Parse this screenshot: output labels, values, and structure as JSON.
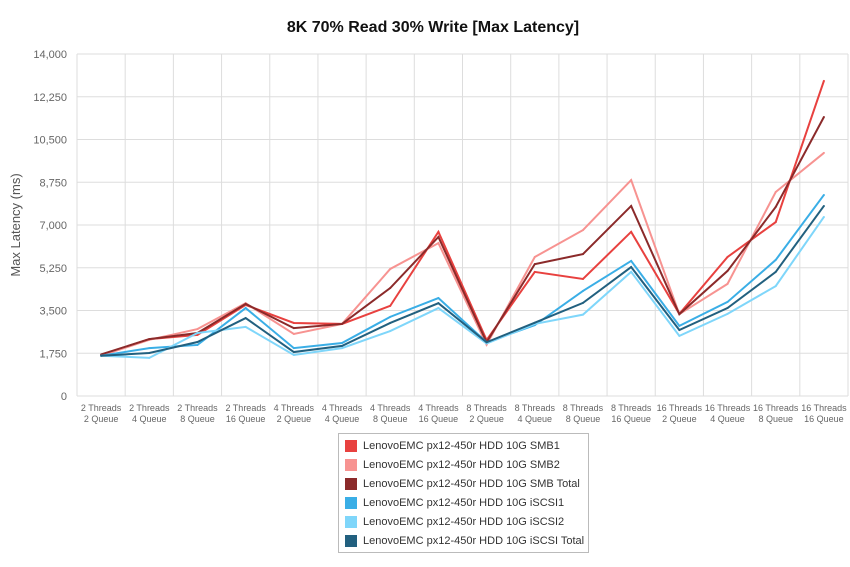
{
  "chart_data": {
    "type": "line",
    "title": "8K 70% Read 30% Write [Max Latency]",
    "ylabel": "Max Latency (ms)",
    "xlabel": "",
    "ylim": [
      0,
      14000
    ],
    "yticks": [
      "0",
      "1,750",
      "3,500",
      "5,250",
      "7,000",
      "8,750",
      "10,500",
      "12,250",
      "14,000"
    ],
    "ytick_values": [
      0,
      1750,
      3500,
      5250,
      7000,
      8750,
      10500,
      12250,
      14000
    ],
    "grid": true,
    "legend_position": "bottom",
    "categories": [
      [
        "2 Threads",
        "2 Queue"
      ],
      [
        "2 Threads",
        "4 Queue"
      ],
      [
        "2 Threads",
        "8 Queue"
      ],
      [
        "2 Threads",
        "16 Queue"
      ],
      [
        "4 Threads",
        "2 Queue"
      ],
      [
        "4 Threads",
        "4 Queue"
      ],
      [
        "4 Threads",
        "8 Queue"
      ],
      [
        "4 Threads",
        "16 Queue"
      ],
      [
        "8 Threads",
        "2 Queue"
      ],
      [
        "8 Threads",
        "4 Queue"
      ],
      [
        "8 Threads",
        "8 Queue"
      ],
      [
        "8 Threads",
        "16 Queue"
      ],
      [
        "16 Threads",
        "2 Queue"
      ],
      [
        "16 Threads",
        "4 Queue"
      ],
      [
        "16 Threads",
        "8 Queue"
      ],
      [
        "16 Threads",
        "16 Queue"
      ]
    ],
    "series": [
      {
        "name": "LenovoEMC px12-450r HDD 10G SMB1",
        "color": "#e8413f",
        "values": [
          1680,
          2330,
          2500,
          3730,
          2990,
          2950,
          3690,
          6720,
          2290,
          5080,
          4790,
          6720,
          3360,
          5690,
          7120,
          12900
        ]
      },
      {
        "name": "LenovoEMC px12-450r HDD 10G SMB2",
        "color": "#f79391",
        "values": [
          1650,
          2300,
          2740,
          3800,
          2540,
          2950,
          5200,
          6260,
          2100,
          5690,
          6790,
          8840,
          3350,
          4590,
          8350,
          9950
        ]
      },
      {
        "name": "LenovoEMC px12-450r HDD 10G SMB Total",
        "color": "#8b2a2a",
        "values": [
          1700,
          2330,
          2580,
          3770,
          2780,
          2950,
          4420,
          6510,
          2200,
          5400,
          5810,
          7780,
          3350,
          5120,
          7740,
          11420
        ]
      },
      {
        "name": "LenovoEMC px12-450r HDD 10G iSCSI1",
        "color": "#3aaee6",
        "values": [
          1650,
          1960,
          2090,
          3600,
          1960,
          2170,
          3240,
          4010,
          2200,
          2900,
          4300,
          5530,
          2870,
          3850,
          5570,
          8230
        ]
      },
      {
        "name": "LenovoEMC px12-450r HDD 10G iSCSI2",
        "color": "#7fd6fa",
        "values": [
          1650,
          1560,
          2580,
          2830,
          1680,
          1960,
          2660,
          3600,
          2150,
          2950,
          3330,
          5080,
          2460,
          3360,
          4500,
          7330
        ]
      },
      {
        "name": "LenovoEMC px12-450r HDD 10G iSCSI Total",
        "color": "#22607f",
        "values": [
          1650,
          1760,
          2210,
          3190,
          1800,
          2050,
          2990,
          3800,
          2200,
          3000,
          3810,
          5280,
          2700,
          3600,
          5080,
          7780
        ]
      }
    ]
  }
}
